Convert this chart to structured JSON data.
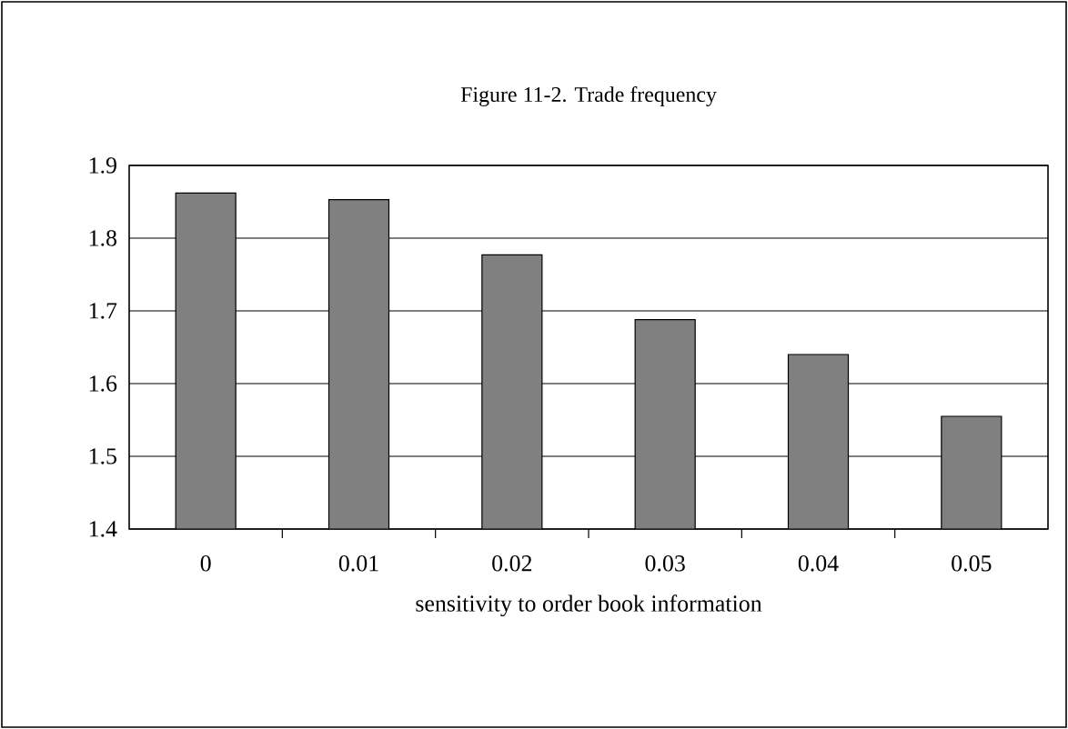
{
  "chart_data": {
    "type": "bar",
    "title": "Figure 11-2.  Trade frequency",
    "xlabel": "sensitivity to order book information",
    "categories": [
      "0",
      "0.01",
      "0.02",
      "0.03",
      "0.04",
      "0.05"
    ],
    "values": [
      1.862,
      1.853,
      1.777,
      1.688,
      1.64,
      1.555
    ],
    "color": "#808080",
    "ylim": [
      1.4,
      1.9
    ],
    "yticks": [
      1.4,
      1.5,
      1.6,
      1.7,
      1.8,
      1.9
    ],
    "grid": "y"
  }
}
